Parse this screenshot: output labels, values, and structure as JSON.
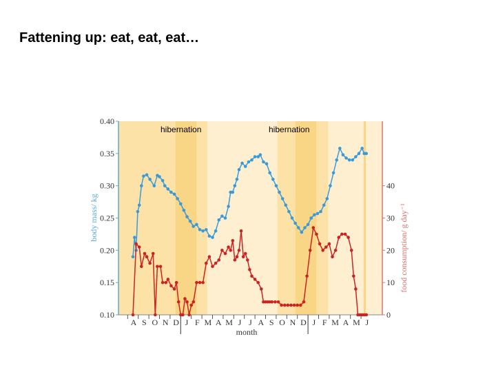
{
  "slide": {
    "title": "Fattening up:  eat, eat, eat…"
  },
  "chart_data": {
    "type": "line",
    "title": "",
    "xlabel": "month",
    "ylabel": "body mass/ kg",
    "y2label": "food consumption/ g day⁻¹",
    "ylim": [
      0.1,
      0.4
    ],
    "y2lim": [
      0,
      60
    ],
    "yticks": [
      "0.10",
      "0.15",
      "0.20",
      "0.25",
      "0.30",
      "0.35",
      "0.40"
    ],
    "y2ticks": [
      "0",
      "10",
      "20",
      "30",
      "40"
    ],
    "months": [
      "A",
      "S",
      "O",
      "N",
      "D",
      "J",
      "F",
      "M",
      "A",
      "M",
      "J",
      "J",
      "A",
      "S",
      "O",
      "N",
      "D",
      "J",
      "F",
      "M",
      "A",
      "M",
      "J"
    ],
    "xlim": [
      0,
      23
    ],
    "hibernation_periods": [
      [
        4.0,
        6.0
      ],
      [
        15.3,
        17.3
      ],
      [
        21.75,
        21.95
      ]
    ],
    "annotations": [
      "hibernation",
      "hibernation"
    ],
    "colors": {
      "body_mass": "#3a9ad9",
      "food": "#cc2222",
      "season_light": "#fdefcf",
      "season_mid": "#fce2a6",
      "hibernation": "#f9d586",
      "right_axis": "#e07070",
      "left_axis": "#5aa8dd"
    },
    "series": [
      {
        "axis": "left",
        "x": [
          0.0,
          0.15,
          0.3,
          0.45,
          0.6,
          0.8,
          1.0,
          1.3,
          1.6,
          2.0,
          2.3,
          2.5,
          2.8,
          3.0,
          3.3,
          3.6,
          3.9,
          4.2,
          4.5,
          4.8,
          5.1,
          5.4,
          5.7,
          6.0,
          6.3,
          6.6,
          6.9,
          7.2,
          7.5,
          7.8,
          8.1,
          8.4,
          8.7,
          9.0,
          9.2,
          9.4,
          9.6,
          9.8,
          10.0,
          10.3,
          10.6,
          10.9,
          11.2,
          11.5,
          11.8,
          12.0,
          12.3,
          12.6,
          12.9,
          13.2,
          13.5,
          13.8,
          14.1,
          14.4,
          14.7,
          15.0,
          15.3,
          15.6,
          15.9,
          16.2,
          16.5,
          16.8,
          17.1,
          17.4,
          17.7,
          18.0,
          18.3,
          18.6,
          18.9,
          19.2,
          19.5,
          19.8,
          20.1,
          20.4,
          20.7,
          21.0,
          21.3,
          21.6,
          21.8,
          22.0
        ],
        "values": [
          0.19,
          0.22,
          0.2,
          0.26,
          0.27,
          0.3,
          0.315,
          0.317,
          0.31,
          0.3,
          0.316,
          0.314,
          0.308,
          0.3,
          0.295,
          0.29,
          0.287,
          0.28,
          0.272,
          0.262,
          0.252,
          0.245,
          0.237,
          0.24,
          0.232,
          0.23,
          0.232,
          0.222,
          0.22,
          0.23,
          0.247,
          0.253,
          0.25,
          0.268,
          0.29,
          0.29,
          0.3,
          0.31,
          0.325,
          0.335,
          0.33,
          0.337,
          0.34,
          0.345,
          0.345,
          0.348,
          0.337,
          0.334,
          0.32,
          0.31,
          0.3,
          0.29,
          0.28,
          0.27,
          0.26,
          0.25,
          0.242,
          0.235,
          0.228,
          0.235,
          0.24,
          0.25,
          0.255,
          0.257,
          0.26,
          0.27,
          0.28,
          0.3,
          0.32,
          0.34,
          0.358,
          0.348,
          0.343,
          0.34,
          0.34,
          0.345,
          0.35,
          0.358,
          0.35,
          0.35
        ]
      },
      {
        "axis": "right",
        "x": [
          0.0,
          0.3,
          0.6,
          0.8,
          1.1,
          1.3,
          1.6,
          1.9,
          2.1,
          2.3,
          2.6,
          2.8,
          3.1,
          3.3,
          3.6,
          3.9,
          4.1,
          4.3,
          4.5,
          4.7,
          4.9,
          5.1,
          5.3,
          5.5,
          5.7,
          6.0,
          6.3,
          6.6,
          6.9,
          7.2,
          7.5,
          7.8,
          8.1,
          8.4,
          8.7,
          9.0,
          9.2,
          9.4,
          9.6,
          9.8,
          10.0,
          10.2,
          10.4,
          10.6,
          10.8,
          11.0,
          11.2,
          11.5,
          11.8,
          12.1,
          12.3,
          12.5,
          12.7,
          12.9,
          13.1,
          13.4,
          13.7,
          14.0,
          14.3,
          14.6,
          14.9,
          15.2,
          15.5,
          15.8,
          16.1,
          16.4,
          16.7,
          17.0,
          17.3,
          17.6,
          17.9,
          18.2,
          18.5,
          18.8,
          19.1,
          19.4,
          19.7,
          20.0,
          20.3,
          20.6,
          20.8,
          21.0,
          21.2,
          21.4,
          21.6,
          21.8,
          22.0
        ],
        "values": [
          0,
          22,
          21,
          15,
          19,
          18,
          16,
          19,
          0,
          15,
          15,
          10,
          10,
          11,
          9,
          8,
          10,
          4,
          0,
          0,
          5,
          4,
          0,
          3,
          4,
          10,
          10,
          10,
          16,
          18,
          15,
          16,
          17,
          20,
          19,
          21,
          20,
          23,
          17,
          18,
          20,
          26,
          18,
          19,
          17,
          14,
          12,
          11,
          10,
          8,
          4,
          4,
          4,
          4,
          4,
          4,
          4,
          3,
          3,
          3,
          3,
          3,
          3,
          3,
          4,
          12,
          20,
          27,
          25,
          22,
          20,
          21,
          22,
          18,
          20,
          24,
          25,
          25,
          24,
          20,
          12,
          8,
          0,
          0,
          0,
          0,
          0
        ]
      }
    ]
  }
}
